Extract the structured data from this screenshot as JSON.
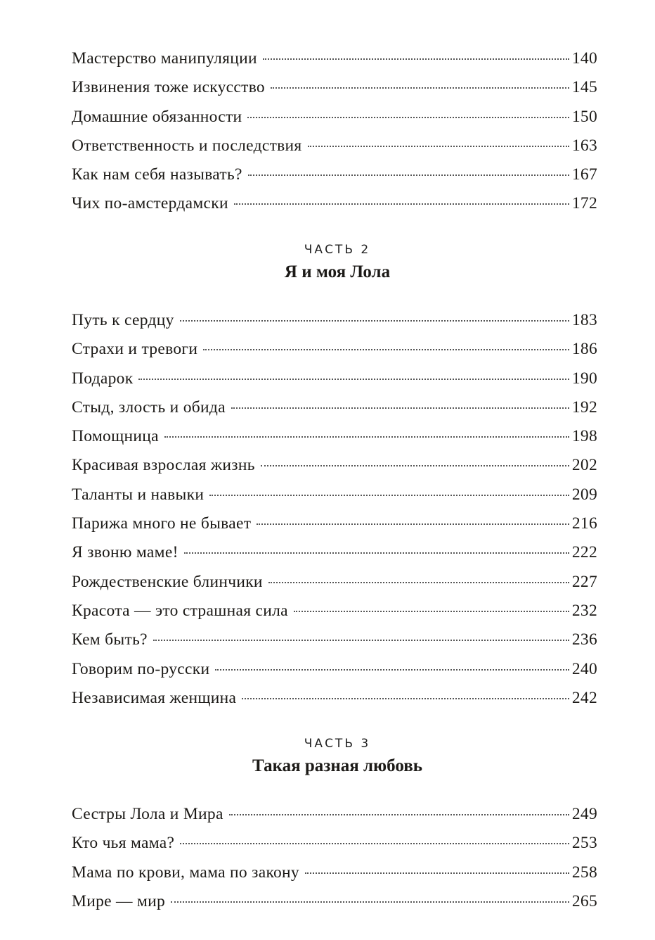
{
  "sections": [
    {
      "entries": [
        {
          "title": "Мастерство манипуляции",
          "page": "140"
        },
        {
          "title": "Извинения тоже искусство",
          "page": "145"
        },
        {
          "title": "Домашние обязанности",
          "page": "150"
        },
        {
          "title": "Ответственность и последствия",
          "page": "163"
        },
        {
          "title": "Как нам себя называть?",
          "page": "167"
        },
        {
          "title": "Чих по-амстердамски",
          "page": "172"
        }
      ]
    },
    {
      "part_label": "ЧАСТЬ 2",
      "part_title": "Я и моя Лола",
      "entries": [
        {
          "title": "Путь к сердцу",
          "page": "183"
        },
        {
          "title": "Страхи и тревоги",
          "page": "186"
        },
        {
          "title": "Подарок",
          "page": "190"
        },
        {
          "title": "Стыд, злость и обида",
          "page": "192"
        },
        {
          "title": "Помощница",
          "page": "198"
        },
        {
          "title": "Красивая взрослая жизнь",
          "page": "202"
        },
        {
          "title": "Таланты и навыки",
          "page": "209"
        },
        {
          "title": "Парижа много не бывает",
          "page": "216"
        },
        {
          "title": "Я звоню маме!",
          "page": "222"
        },
        {
          "title": "Рождественские блинчики",
          "page": "227"
        },
        {
          "title": "Красота — это страшная сила",
          "page": "232"
        },
        {
          "title": "Кем быть?",
          "page": "236"
        },
        {
          "title": "Говорим по-русски",
          "page": "240"
        },
        {
          "title": "Независимая женщина",
          "page": "242"
        }
      ]
    },
    {
      "part_label": "ЧАСТЬ 3",
      "part_title": "Такая разная любовь",
      "entries": [
        {
          "title": "Сестры Лола и Мира",
          "page": "249"
        },
        {
          "title": "Кто чья мама?",
          "page": "253"
        },
        {
          "title": "Мама по крови, мама по закону",
          "page": "258"
        },
        {
          "title": "Мире — мир",
          "page": "265"
        }
      ]
    }
  ]
}
